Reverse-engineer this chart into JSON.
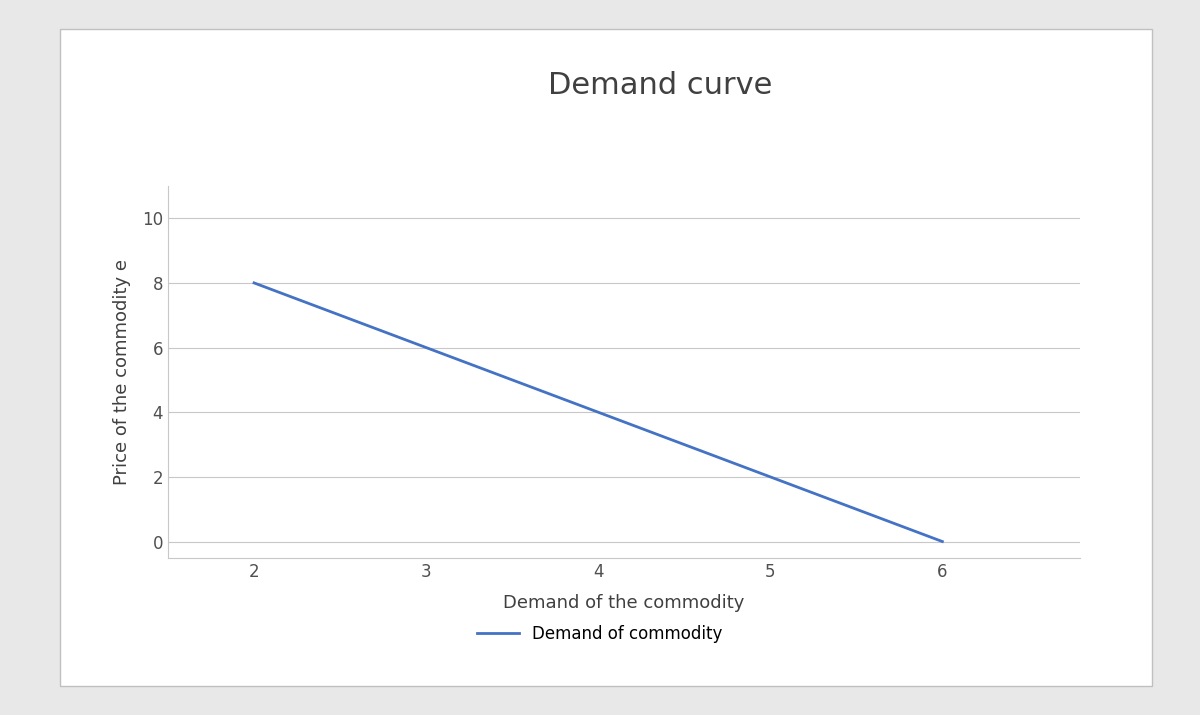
{
  "title": "Demand curve",
  "xlabel": "Demand of the commodity",
  "ylabel": "Price of the commodity e",
  "x_data": [
    2,
    6
  ],
  "y_data": [
    8,
    0
  ],
  "line_color": "#4472c4",
  "line_width": 2.0,
  "xlim": [
    1.5,
    6.8
  ],
  "ylim": [
    -0.5,
    11
  ],
  "xticks": [
    2,
    3,
    4,
    5,
    6
  ],
  "yticks": [
    0,
    2,
    4,
    6,
    8,
    10
  ],
  "title_fontsize": 22,
  "label_fontsize": 13,
  "tick_fontsize": 12,
  "legend_label": "Demand of commodity",
  "outer_background": "#e8e8e8",
  "inner_background": "#ffffff",
  "box_border_color": "#c0c0c0",
  "grid_color": "#c8c8c8",
  "title_color": "#404040",
  "axis_label_color": "#404040",
  "tick_color": "#505050",
  "legend_fontsize": 12
}
